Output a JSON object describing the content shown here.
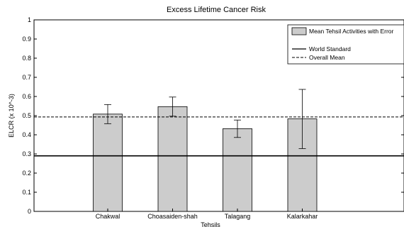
{
  "chart_data": {
    "type": "bar",
    "title": "Excess Lifetime Cancer Risk",
    "xlabel": "Tehsils",
    "ylabel": "ELCR (x 10^-3)",
    "ylim": [
      0,
      1
    ],
    "yticks": [
      "0",
      "0.1",
      "0.2",
      "0.3",
      "0.4",
      "0.5",
      "0.6",
      "0.7",
      "0.8",
      "0.9",
      "1"
    ],
    "categories": [
      "Chakwal",
      "Choasaiden-shah",
      "Talagang",
      "Kalarkahar"
    ],
    "series": [
      {
        "name": "Mean Tehsil Activities with Error",
        "values": [
          0.508,
          0.547,
          0.432,
          0.483
        ],
        "error_low": [
          0.458,
          0.497,
          0.386,
          0.328
        ],
        "error_high": [
          0.558,
          0.597,
          0.477,
          0.637
        ],
        "color": "#cccccc"
      }
    ],
    "reference_lines": [
      {
        "name": "World Standard",
        "value": 0.29,
        "style": "solid"
      },
      {
        "name": "Overall Mean",
        "value": 0.493,
        "style": "dashed"
      }
    ],
    "legend": "top-right",
    "grid": false
  }
}
